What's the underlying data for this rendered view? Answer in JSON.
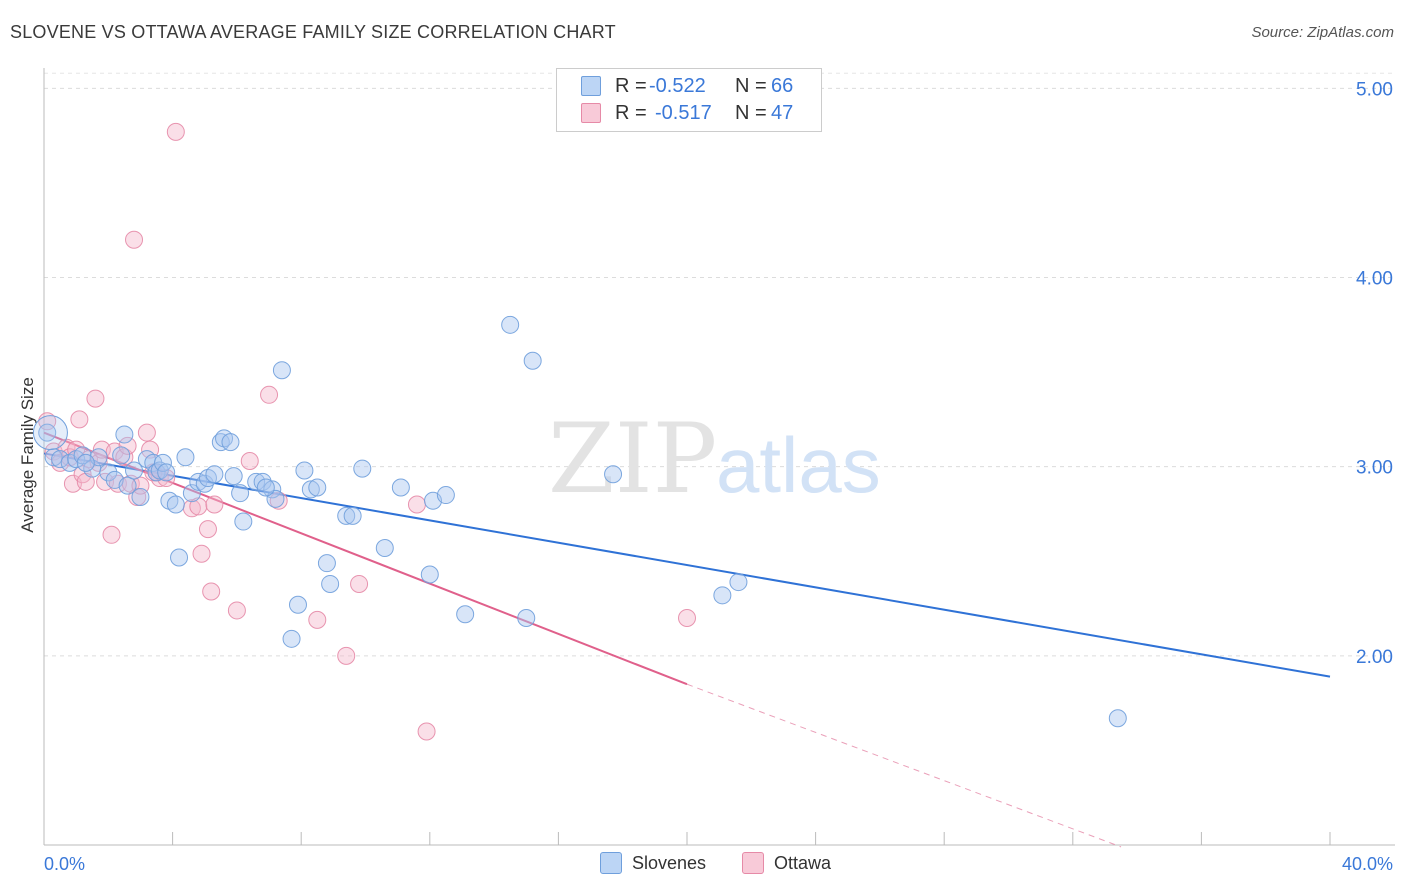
{
  "header": {
    "title": "SLOVENE VS OTTAWA AVERAGE FAMILY SIZE CORRELATION CHART",
    "source": "Source: ZipAtlas.com"
  },
  "watermark": {
    "zip": "ZIP",
    "atlas": "atlas"
  },
  "stats": {
    "r_label": "R =",
    "n_label": "N =",
    "rows": [
      {
        "r": "-0.522",
        "n": "66",
        "color": "#a8c6f0"
      },
      {
        "r": "-0.517",
        "n": "47",
        "color": "#f4b8cb"
      }
    ]
  },
  "legend": {
    "items": [
      "Slovenes",
      "Ottawa"
    ]
  },
  "chart_data": {
    "type": "scatter",
    "title": "SLOVENE VS OTTAWA AVERAGE FAMILY SIZE CORRELATION CHART",
    "xlabel": "",
    "ylabel": "Average Family Size",
    "xlim": [
      0,
      40
    ],
    "ylim": [
      1.0,
      5.15
    ],
    "x_tick_labels": [
      "0.0%",
      "40.0%"
    ],
    "y_ticks": [
      2.0,
      3.0,
      4.0,
      5.0
    ],
    "y_tick_labels": [
      "2.00",
      "3.00",
      "4.00",
      "5.00"
    ],
    "grid": true,
    "legend_position": "bottom-center",
    "series": [
      {
        "name": "Slovenes",
        "color": "#a8c6f0",
        "stroke": "#6f9fdc",
        "trend_color": "#2f72d6",
        "trend": {
          "x0": 0,
          "y0": 3.07,
          "x1": 40,
          "y1": 1.89
        },
        "points": [
          [
            0.1,
            3.18
          ],
          [
            0.3,
            3.05
          ],
          [
            0.5,
            3.04
          ],
          [
            0.8,
            3.02
          ],
          [
            1.0,
            3.04
          ],
          [
            1.2,
            3.06
          ],
          [
            1.5,
            2.99
          ],
          [
            1.7,
            3.05
          ],
          [
            2.0,
            2.97
          ],
          [
            2.2,
            2.93
          ],
          [
            2.5,
            3.17
          ],
          [
            2.6,
            2.9
          ],
          [
            2.8,
            2.98
          ],
          [
            3.0,
            2.84
          ],
          [
            3.2,
            3.04
          ],
          [
            3.4,
            3.02
          ],
          [
            3.5,
            2.97
          ],
          [
            3.6,
            2.98
          ],
          [
            3.7,
            3.02
          ],
          [
            3.9,
            2.82
          ],
          [
            4.1,
            2.8
          ],
          [
            4.2,
            2.52
          ],
          [
            4.4,
            3.05
          ],
          [
            4.6,
            2.86
          ],
          [
            4.8,
            2.92
          ],
          [
            5.0,
            2.91
          ],
          [
            5.1,
            2.94
          ],
          [
            5.3,
            2.96
          ],
          [
            5.5,
            3.13
          ],
          [
            5.6,
            3.15
          ],
          [
            5.8,
            3.13
          ],
          [
            5.9,
            2.95
          ],
          [
            6.1,
            2.86
          ],
          [
            6.2,
            2.71
          ],
          [
            6.6,
            2.92
          ],
          [
            6.8,
            2.92
          ],
          [
            7.1,
            2.88
          ],
          [
            7.2,
            2.83
          ],
          [
            7.4,
            3.51
          ],
          [
            7.7,
            2.09
          ],
          [
            7.9,
            2.27
          ],
          [
            8.1,
            2.98
          ],
          [
            8.3,
            2.88
          ],
          [
            8.5,
            2.89
          ],
          [
            8.8,
            2.49
          ],
          [
            8.9,
            2.38
          ],
          [
            9.4,
            2.74
          ],
          [
            9.6,
            2.74
          ],
          [
            9.9,
            2.99
          ],
          [
            10.6,
            2.57
          ],
          [
            11.1,
            2.89
          ],
          [
            12.0,
            2.43
          ],
          [
            12.1,
            2.82
          ],
          [
            12.5,
            2.85
          ],
          [
            13.1,
            2.22
          ],
          [
            14.5,
            3.75
          ],
          [
            15.0,
            2.2
          ],
          [
            15.2,
            3.56
          ],
          [
            17.7,
            2.96
          ],
          [
            21.1,
            2.32
          ],
          [
            21.6,
            2.39
          ],
          [
            33.4,
            1.67
          ],
          [
            1.3,
            3.02
          ],
          [
            2.4,
            3.06
          ],
          [
            3.8,
            2.97
          ],
          [
            6.9,
            2.89
          ]
        ]
      },
      {
        "name": "Ottawa",
        "color": "#f4b8cb",
        "stroke": "#e68aa7",
        "trend_color": "#e0608b",
        "trend": {
          "x0": 0,
          "y0": 3.18,
          "x1": 20,
          "y1": 1.85
        },
        "trend_ext": {
          "x0": 20,
          "y0": 1.85,
          "x1": 33.5,
          "y1": 0.99
        },
        "points": [
          [
            0.1,
            3.24
          ],
          [
            0.3,
            3.08
          ],
          [
            0.5,
            3.02
          ],
          [
            0.7,
            3.1
          ],
          [
            0.8,
            3.05
          ],
          [
            0.9,
            2.91
          ],
          [
            1.0,
            3.09
          ],
          [
            1.1,
            3.25
          ],
          [
            1.2,
            2.96
          ],
          [
            1.3,
            2.92
          ],
          [
            1.4,
            3.04
          ],
          [
            1.6,
            3.36
          ],
          [
            1.7,
            3.02
          ],
          [
            1.8,
            3.09
          ],
          [
            1.9,
            2.92
          ],
          [
            2.1,
            2.64
          ],
          [
            2.2,
            3.08
          ],
          [
            2.3,
            2.91
          ],
          [
            2.5,
            3.05
          ],
          [
            2.6,
            3.11
          ],
          [
            2.7,
            2.91
          ],
          [
            2.8,
            4.2
          ],
          [
            2.9,
            2.84
          ],
          [
            3.0,
            2.9
          ],
          [
            3.2,
            3.18
          ],
          [
            3.3,
            3.09
          ],
          [
            3.5,
            2.97
          ],
          [
            3.6,
            2.94
          ],
          [
            3.8,
            2.94
          ],
          [
            4.1,
            4.77
          ],
          [
            4.6,
            2.78
          ],
          [
            4.8,
            2.79
          ],
          [
            4.9,
            2.54
          ],
          [
            5.1,
            2.67
          ],
          [
            5.2,
            2.34
          ],
          [
            5.3,
            2.8
          ],
          [
            6.0,
            2.24
          ],
          [
            6.4,
            3.03
          ],
          [
            7.0,
            3.38
          ],
          [
            7.3,
            2.82
          ],
          [
            8.5,
            2.19
          ],
          [
            9.4,
            2.0
          ],
          [
            9.8,
            2.38
          ],
          [
            11.6,
            2.8
          ],
          [
            11.9,
            1.6
          ],
          [
            20.0,
            2.2
          ],
          [
            3.4,
            2.97
          ]
        ]
      }
    ]
  }
}
